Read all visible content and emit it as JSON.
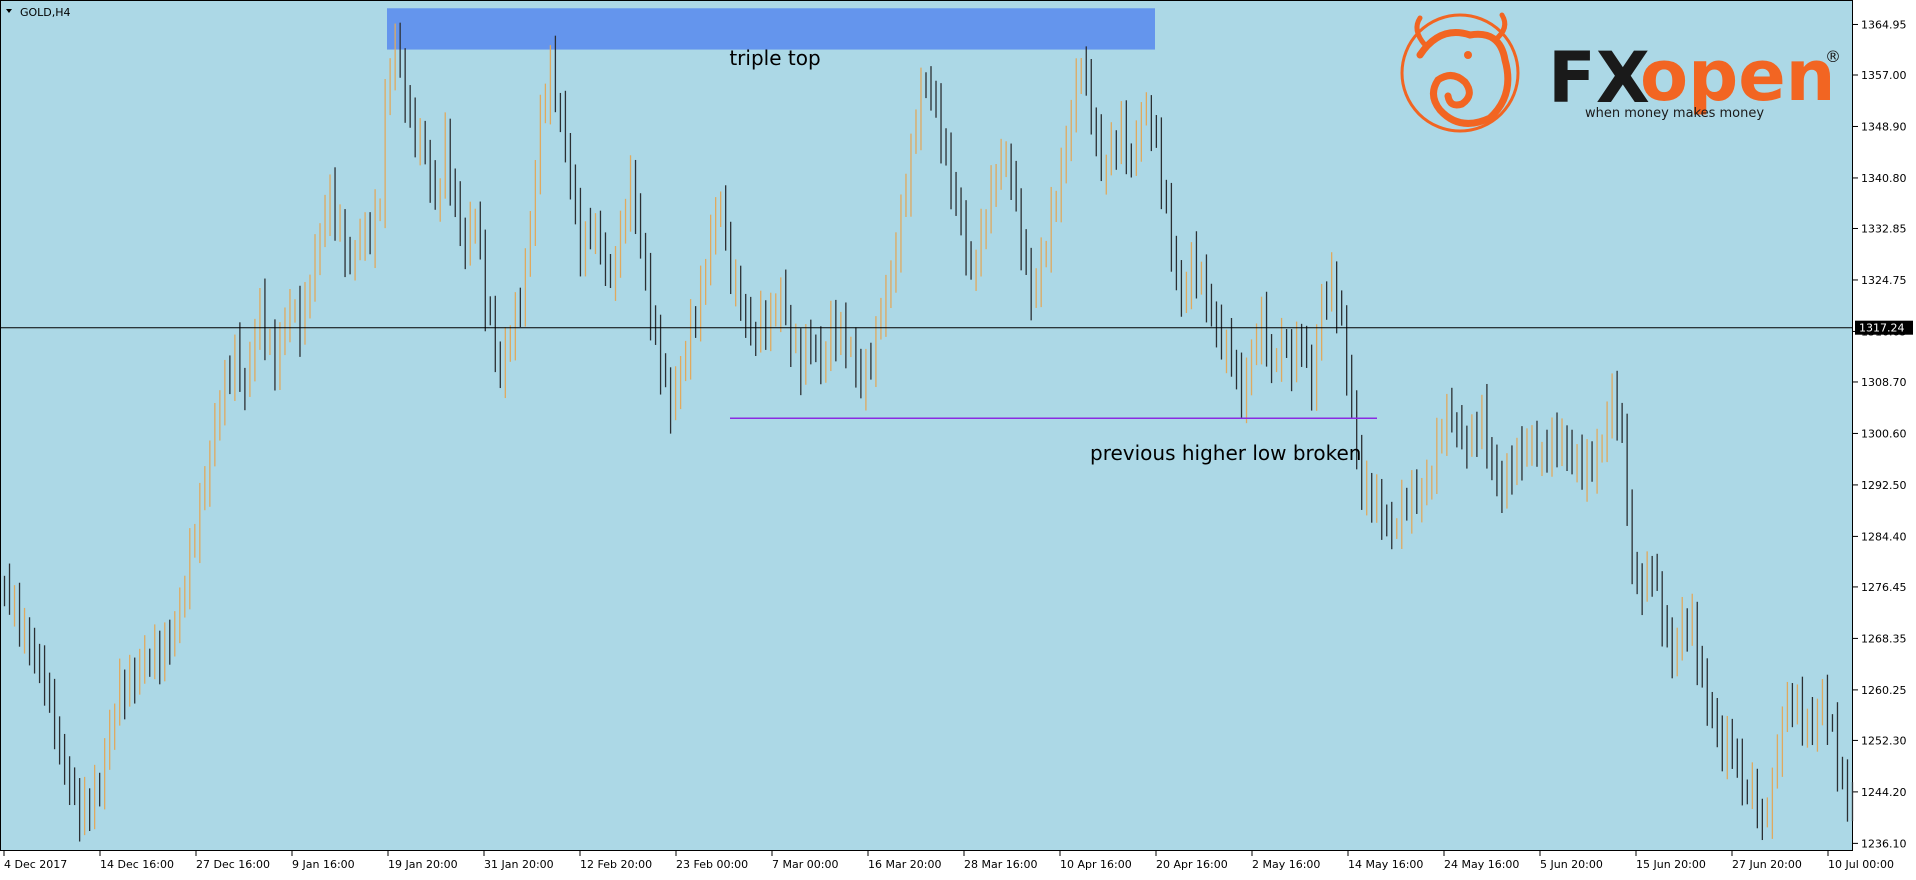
{
  "chart_title": "GOLD,H4",
  "colors": {
    "background": "#acd8e6",
    "bull": "#e0a95e",
    "bear": "#2b2f33",
    "triple_top_band": "#6495ed",
    "higher_low_line": "#8a2be2",
    "price_line": "#000000",
    "logo_orange": "#f26522",
    "logo_dark": "#1a1a1a"
  },
  "annotations": {
    "triple_top": "triple top",
    "higher_low": "previous higher low broken"
  },
  "logo": {
    "brand_fx": "FX",
    "brand_open": "open",
    "registered": "®",
    "tagline": "when money makes money"
  },
  "chart_data": {
    "type": "candlestick",
    "symbol": "GOLD",
    "timeframe": "H4",
    "y_ticks": [
      1364.95,
      1357.0,
      1348.9,
      1340.8,
      1332.85,
      1324.75,
      1316.65,
      1308.7,
      1300.6,
      1292.5,
      1284.4,
      1276.45,
      1268.35,
      1260.25,
      1252.3,
      1244.2,
      1236.1
    ],
    "ylim": [
      1234.9,
      1368.8
    ],
    "current_price": 1317.24,
    "x_ticks": [
      "4 Dec 2017",
      "14 Dec 16:00",
      "27 Dec 16:00",
      "9 Jan 16:00",
      "19 Jan 20:00",
      "31 Jan 20:00",
      "12 Feb 20:00",
      "23 Feb 00:00",
      "7 Mar 00:00",
      "16 Mar 20:00",
      "28 Mar 16:00",
      "10 Apr 16:00",
      "20 Apr 16:00",
      "2 May 16:00",
      "14 May 16:00",
      "24 May 16:00",
      "5 Jun 20:00",
      "15 Jun 20:00",
      "27 Jun 20:00",
      "10 Jul 00:00"
    ],
    "triple_top_zone": [
      1361.0,
      1367.5
    ],
    "higher_low_level": 1303.0,
    "price_path": [
      [
        0,
        1277
      ],
      [
        6,
        1268
      ],
      [
        10,
        1258
      ],
      [
        13,
        1248
      ],
      [
        16,
        1240
      ],
      [
        20,
        1246
      ],
      [
        24,
        1260
      ],
      [
        28,
        1264
      ],
      [
        32,
        1266
      ],
      [
        36,
        1272
      ],
      [
        40,
        1290
      ],
      [
        44,
        1305
      ],
      [
        47,
        1314
      ],
      [
        49,
        1307
      ],
      [
        52,
        1320
      ],
      [
        55,
        1312
      ],
      [
        58,
        1320
      ],
      [
        60,
        1318
      ],
      [
        63,
        1328
      ],
      [
        66,
        1338
      ],
      [
        68,
        1333
      ],
      [
        70,
        1327
      ],
      [
        72,
        1331
      ],
      [
        74,
        1332
      ],
      [
        76,
        1338
      ],
      [
        77,
        1352
      ],
      [
        79,
        1362
      ],
      [
        81,
        1354
      ],
      [
        83,
        1348
      ],
      [
        85,
        1344
      ],
      [
        87,
        1336
      ],
      [
        89,
        1347
      ],
      [
        91,
        1336
      ],
      [
        93,
        1329
      ],
      [
        95,
        1336
      ],
      [
        97,
        1322
      ],
      [
        100,
        1309
      ],
      [
        102,
        1317
      ],
      [
        104,
        1322
      ],
      [
        106,
        1332
      ],
      [
        108,
        1350
      ],
      [
        110,
        1359
      ],
      [
        112,
        1350
      ],
      [
        114,
        1340
      ],
      [
        116,
        1330
      ],
      [
        118,
        1334
      ],
      [
        120,
        1329
      ],
      [
        122,
        1324
      ],
      [
        124,
        1333
      ],
      [
        126,
        1340
      ],
      [
        128,
        1330
      ],
      [
        130,
        1320
      ],
      [
        132,
        1312
      ],
      [
        134,
        1304
      ],
      [
        136,
        1310
      ],
      [
        138,
        1318
      ],
      [
        140,
        1322
      ],
      [
        142,
        1331
      ],
      [
        144,
        1338
      ],
      [
        146,
        1326
      ],
      [
        148,
        1320
      ],
      [
        150,
        1316
      ],
      [
        152,
        1319
      ],
      [
        154,
        1318
      ],
      [
        156,
        1322
      ],
      [
        158,
        1316
      ],
      [
        160,
        1312
      ],
      [
        162,
        1315
      ],
      [
        164,
        1311
      ],
      [
        166,
        1318
      ],
      [
        168,
        1316
      ],
      [
        170,
        1313
      ],
      [
        172,
        1309
      ],
      [
        174,
        1313
      ],
      [
        176,
        1319
      ],
      [
        178,
        1325
      ],
      [
        180,
        1336
      ],
      [
        182,
        1344
      ],
      [
        184,
        1354
      ],
      [
        186,
        1356
      ],
      [
        188,
        1348
      ],
      [
        190,
        1339
      ],
      [
        192,
        1334
      ],
      [
        194,
        1326
      ],
      [
        196,
        1331
      ],
      [
        198,
        1338
      ],
      [
        200,
        1345
      ],
      [
        202,
        1342
      ],
      [
        204,
        1330
      ],
      [
        206,
        1322
      ],
      [
        208,
        1328
      ],
      [
        210,
        1334
      ],
      [
        212,
        1341
      ],
      [
        214,
        1352
      ],
      [
        216,
        1360
      ],
      [
        218,
        1350
      ],
      [
        220,
        1342
      ],
      [
        222,
        1346
      ],
      [
        224,
        1348
      ],
      [
        226,
        1342
      ],
      [
        228,
        1352
      ],
      [
        230,
        1350
      ],
      [
        232,
        1340
      ],
      [
        234,
        1330
      ],
      [
        236,
        1322
      ],
      [
        238,
        1327
      ],
      [
        240,
        1324
      ],
      [
        242,
        1320
      ],
      [
        244,
        1315
      ],
      [
        246,
        1312
      ],
      [
        248,
        1306
      ],
      [
        250,
        1314
      ],
      [
        252,
        1318
      ],
      [
        254,
        1310
      ],
      [
        256,
        1316
      ],
      [
        258,
        1312
      ],
      [
        260,
        1315
      ],
      [
        262,
        1308
      ],
      [
        264,
        1322
      ],
      [
        266,
        1324
      ],
      [
        268,
        1317
      ],
      [
        270,
        1305
      ],
      [
        272,
        1292
      ],
      [
        274,
        1290
      ],
      [
        276,
        1288
      ],
      [
        278,
        1286
      ],
      [
        280,
        1288
      ],
      [
        282,
        1290
      ],
      [
        284,
        1292
      ],
      [
        286,
        1295
      ],
      [
        288,
        1301
      ],
      [
        290,
        1304
      ],
      [
        292,
        1300
      ],
      [
        294,
        1299
      ],
      [
        296,
        1303
      ],
      [
        298,
        1296
      ],
      [
        300,
        1292
      ],
      [
        302,
        1295
      ],
      [
        304,
        1298
      ],
      [
        306,
        1300
      ],
      [
        308,
        1296
      ],
      [
        310,
        1299
      ],
      [
        312,
        1300
      ],
      [
        314,
        1297
      ],
      [
        316,
        1294
      ],
      [
        318,
        1296
      ],
      [
        320,
        1300
      ],
      [
        322,
        1306
      ],
      [
        324,
        1300
      ],
      [
        326,
        1280
      ],
      [
        328,
        1276
      ],
      [
        330,
        1279
      ],
      [
        332,
        1272
      ],
      [
        334,
        1266
      ],
      [
        336,
        1270
      ],
      [
        338,
        1270
      ],
      [
        340,
        1262
      ],
      [
        342,
        1256
      ],
      [
        344,
        1250
      ],
      [
        346,
        1252
      ],
      [
        348,
        1246
      ],
      [
        350,
        1244
      ],
      [
        352,
        1238
      ],
      [
        354,
        1246
      ],
      [
        356,
        1256
      ],
      [
        358,
        1258
      ],
      [
        360,
        1256
      ],
      [
        362,
        1255
      ],
      [
        364,
        1258
      ],
      [
        366,
        1253
      ],
      [
        368,
        1246
      ],
      [
        370,
        1242
      ]
    ]
  }
}
